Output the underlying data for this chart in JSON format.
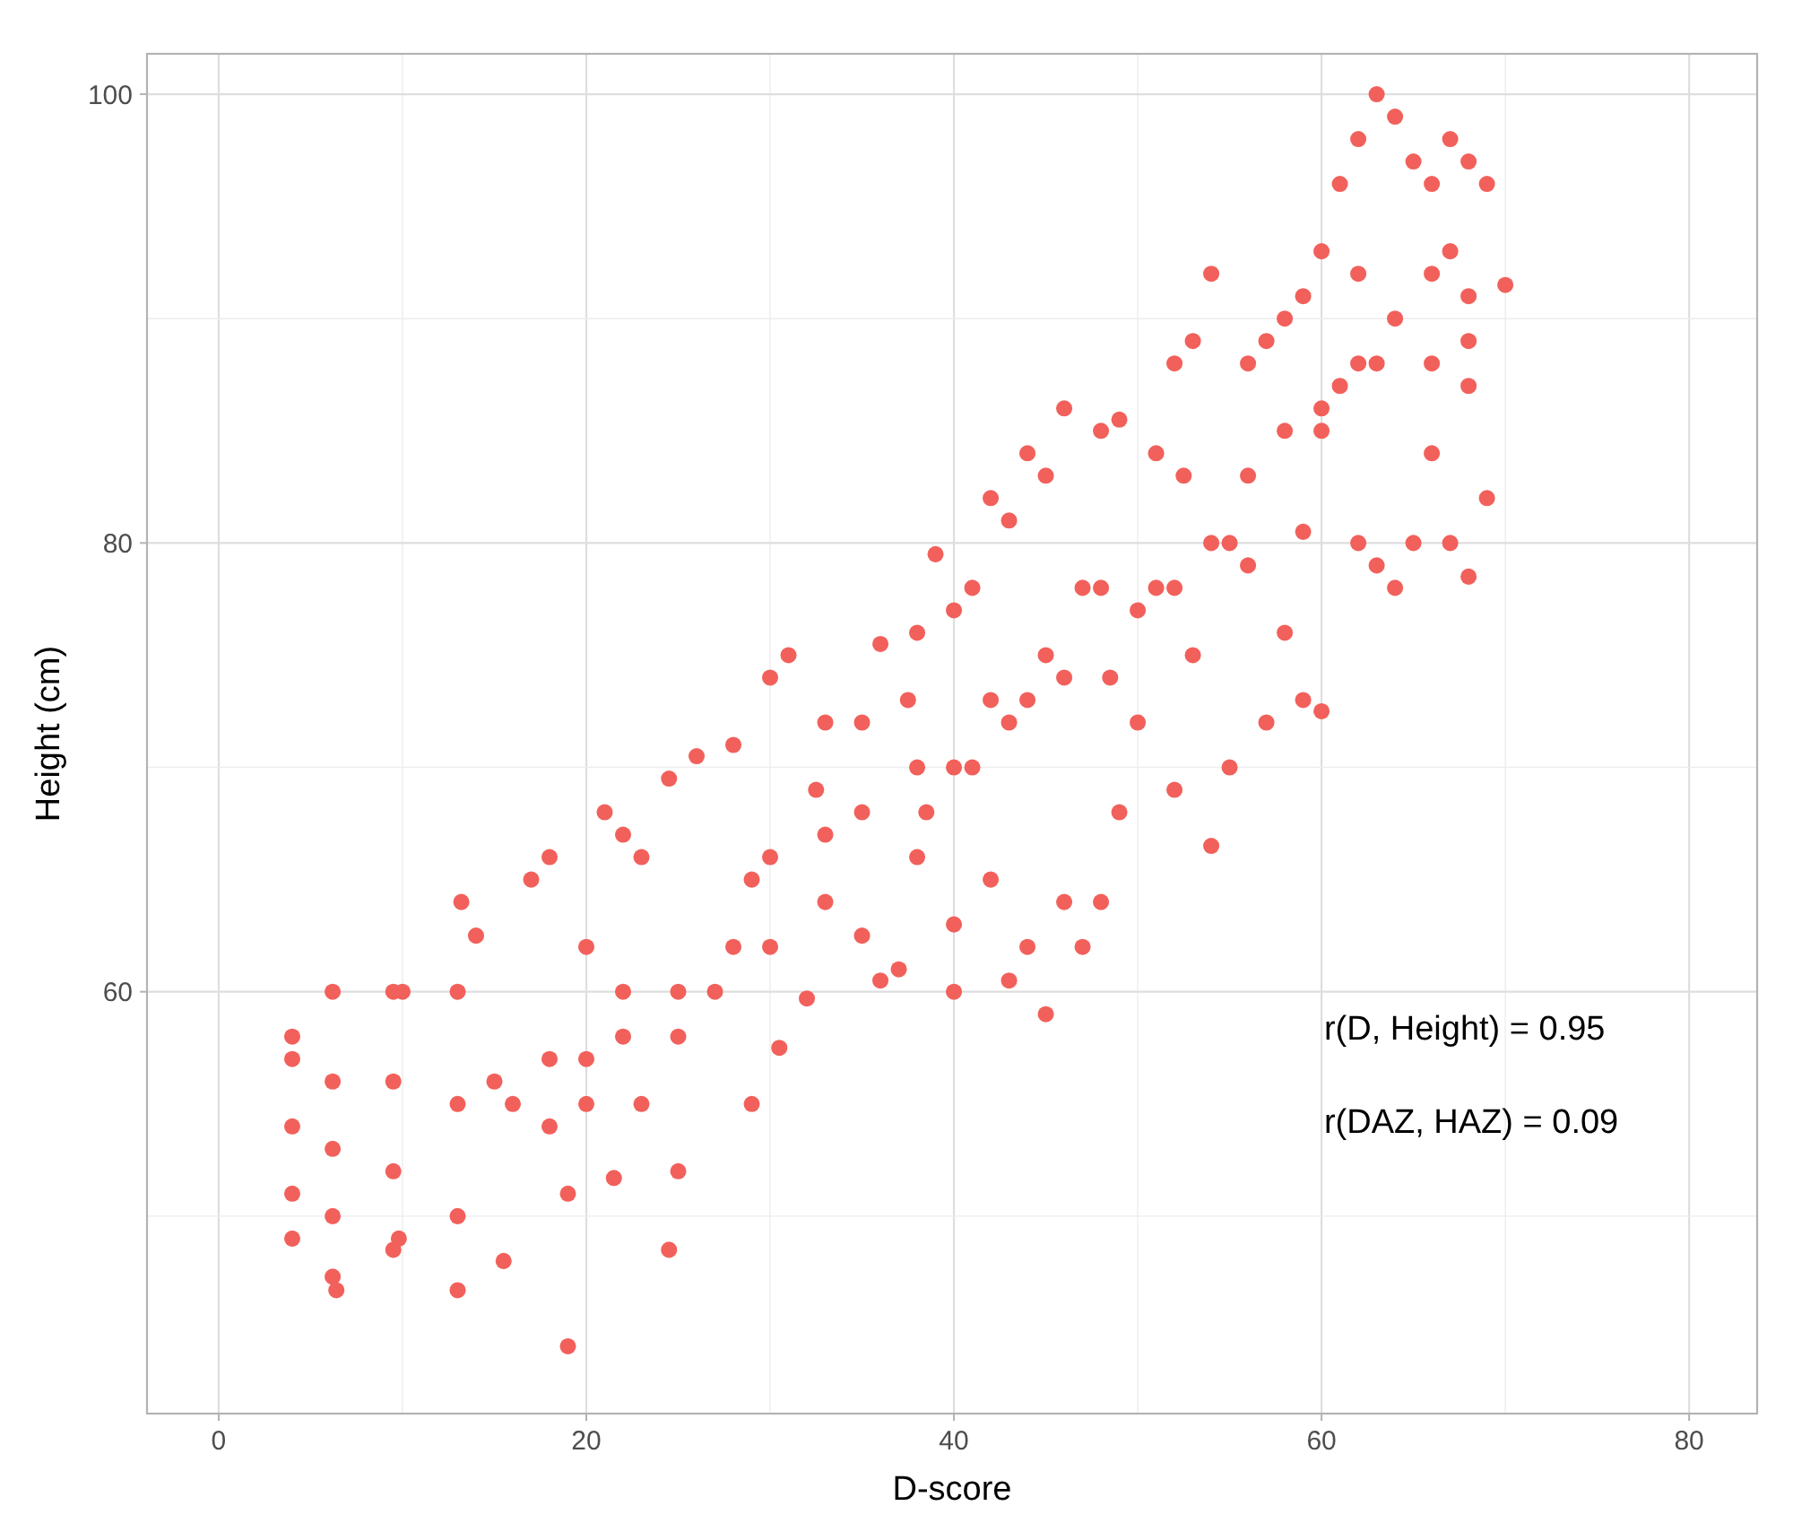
{
  "chart_data": {
    "type": "scatter",
    "xlabel": "D-score",
    "ylabel": "Height (cm)",
    "grid": true,
    "marker": "circle",
    "color": "#f2605b",
    "xlim": [
      -3.9,
      83.7
    ],
    "ylim": [
      41.2,
      101.8
    ],
    "xticks": [
      0,
      {
        "value": 10,
        "label": null
      },
      20,
      {
        "value": 30,
        "label": null
      },
      40,
      {
        "value": 50,
        "label": null
      },
      60,
      {
        "value": 70,
        "label": null
      },
      80
    ],
    "yticks": [
      {
        "value": 50,
        "label": null
      },
      60,
      {
        "value": 70,
        "label": null
      },
      80,
      {
        "value": 90,
        "label": null
      },
      100
    ],
    "annotations": [
      "r(D, Height) = 0.95",
      "r(DAZ, HAZ) = 0.09"
    ],
    "x": [
      4,
      4,
      4,
      4,
      4,
      6.2,
      6.4,
      6.2,
      6.2,
      6.2,
      6.2,
      9.5,
      9.5,
      9.5,
      9.5,
      10,
      9.8,
      13,
      13,
      13,
      13,
      13.2,
      14,
      15.5,
      17,
      18,
      19,
      19,
      20,
      16,
      18,
      20,
      21,
      22,
      23,
      24.5,
      24.5,
      21.5,
      25,
      23,
      25,
      22,
      26,
      28,
      29,
      30,
      27,
      29,
      30,
      30.5,
      32,
      31,
      33,
      35,
      33,
      35,
      36,
      37.5,
      32.5,
      36,
      38,
      39,
      40,
      38,
      40,
      40,
      37,
      38.5,
      41,
      42,
      43,
      44,
      45,
      42,
      43,
      44,
      45,
      46,
      41,
      43,
      45,
      46,
      48,
      49,
      49,
      48,
      47,
      50,
      47,
      48.5,
      51,
      52,
      53,
      54,
      52,
      54,
      55,
      53,
      55,
      51,
      52.5,
      56,
      57,
      58,
      59,
      60,
      57,
      59,
      60,
      58,
      56,
      59,
      60,
      61,
      62,
      63,
      64,
      65,
      61,
      62,
      63,
      64,
      65,
      63,
      62,
      66,
      67,
      68,
      69,
      70,
      66,
      68,
      67,
      68,
      69,
      68,
      66,
      67,
      15,
      18,
      20,
      22,
      25,
      28,
      30,
      33,
      35,
      38,
      40,
      42,
      44,
      46,
      48,
      50,
      52,
      54,
      56,
      58,
      60,
      62,
      64,
      66,
      68
    ],
    "values": [
      49,
      51,
      54,
      58,
      57,
      47.3,
      46.7,
      50,
      53,
      56,
      60,
      48.5,
      52,
      56,
      60,
      60,
      49,
      46.7,
      50,
      55,
      60,
      64,
      62.5,
      48,
      65,
      66,
      44.2,
      51,
      62,
      55,
      57,
      57,
      68,
      67,
      66,
      69.5,
      48.5,
      51.7,
      52,
      55,
      60,
      60,
      70.5,
      71,
      55,
      74,
      60,
      65,
      62,
      57.5,
      59.7,
      75,
      72,
      72,
      64,
      62.5,
      60.5,
      73,
      69,
      75.5,
      76,
      79.5,
      77,
      66,
      63,
      60,
      61,
      68,
      78,
      82,
      81,
      84,
      83,
      65,
      60.5,
      62,
      59,
      64,
      70,
      72,
      75,
      86,
      85,
      85.5,
      68,
      64,
      62,
      72,
      78,
      74,
      84,
      88,
      89,
      92,
      69,
      66.5,
      70,
      75,
      80,
      78,
      83,
      88,
      89,
      90,
      91,
      86,
      72,
      73,
      72.5,
      76,
      83,
      80.5,
      93,
      96,
      98,
      100,
      99,
      97,
      87,
      80,
      79,
      78,
      80,
      88,
      92,
      96,
      98,
      97,
      96,
      91.5,
      88,
      87,
      80,
      78.5,
      82,
      91,
      84,
      93,
      56,
      54,
      55,
      58,
      58,
      62,
      66,
      67,
      68,
      70,
      70,
      73,
      73,
      74,
      78,
      77,
      78,
      80,
      79,
      85,
      85,
      88,
      90,
      92,
      89
    ]
  }
}
